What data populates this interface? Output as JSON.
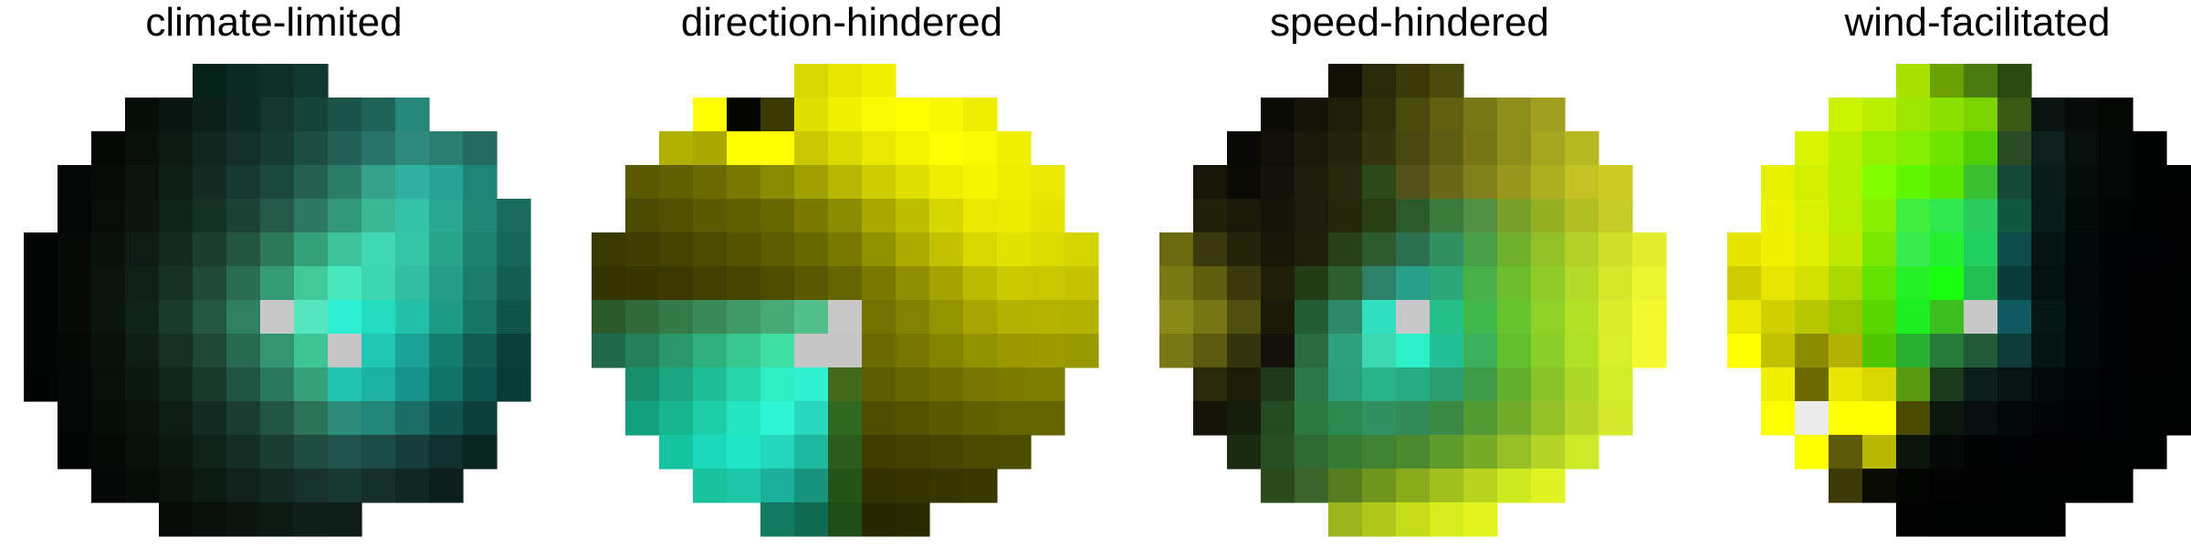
{
  "figure": {
    "background": "#ffffff",
    "marker_color": "#c8c8c8"
  },
  "chart_data": [
    {
      "type": "heatmap",
      "title": "climate-limited",
      "shape": "circular grid",
      "rows": 14,
      "cols": 15,
      "center_cell": [
        7,
        7
      ],
      "dominant_color": "#00e5cc",
      "cells": [
        [
          null,
          null,
          null,
          null,
          null,
          "#062219",
          "#0a2a22",
          "#0d3029",
          "#0f3830",
          null,
          null,
          null,
          null,
          null,
          null
        ],
        [
          null,
          null,
          null,
          "#060d08",
          "#091510",
          "#0c1f18",
          "#0f2a22",
          "#13352d",
          "#17443a",
          "#1b5349",
          "#1f6358",
          "#26887a",
          null,
          null,
          null
        ],
        [
          null,
          null,
          "#050906",
          "#081009",
          "#0c1a13",
          "#0f251d",
          "#133028",
          "#173c33",
          "#1d4c42",
          "#226054",
          "#277469",
          "#2d8a7d",
          "#2b7d70",
          "#236b60",
          null
        ],
        [
          null,
          "#040705",
          "#070c08",
          "#0a140e",
          "#0e1f18",
          "#122a22",
          "#17382e",
          "#1c473c",
          "#24604f",
          "#2b7d68",
          "#36a28a",
          "#2fb0a0",
          "#27a294",
          "#1f8478",
          null
        ],
        [
          null,
          "#040605",
          "#080d09",
          "#0c1610",
          "#10231b",
          "#153126",
          "#1b4235",
          "#235a48",
          "#2c7860",
          "#339878",
          "#3ab894",
          "#34c2a8",
          "#2aa893",
          "#218676",
          "#1a6a5d"
        ],
        [
          "#030504",
          "#060a07",
          "#0a110b",
          "#0e1c15",
          "#132a21",
          "#1a3d30",
          "#22563f",
          "#2c7a58",
          "#34a178",
          "#3cc39a",
          "#3fd8b2",
          "#34c4a6",
          "#28a48a",
          "#1f826f",
          "#17665a"
        ],
        [
          "#030504",
          "#060a07",
          "#0a130d",
          "#0f2018",
          "#163225",
          "#1f4a38",
          "#296d52",
          "#359b74",
          "#41c99a",
          "#46e8bc",
          "#3ed6b0",
          "#32bea0",
          "#269e87",
          "#1c7c6a",
          "#145e51"
        ],
        [
          "#030504",
          "#060a07",
          "#0a140e",
          "#10231a",
          "#193a2c",
          "#235643",
          "#2f7f62",
          "#3cb28a",
          "#55e6c0",
          "#2ef0d4",
          "#24dcc0",
          "#22c0a6",
          "#1c9a86",
          "#157666",
          "#0f5649"
        ],
        [
          "#030504",
          "#050906",
          "#09110b",
          "#0e1d15",
          "#152f23",
          "#1e4736",
          "#286a51",
          "#339672",
          "#3ec596",
          "#c6c6c6",
          "#20c8b4",
          "#1aa294",
          "#157c70",
          "#105c52",
          "#0b4038"
        ],
        [
          "#020403",
          "#040806",
          "#070f0a",
          "#0b1812",
          "#10261d",
          "#17392c",
          "#1f5442",
          "#2a785d",
          "#35a07a",
          "#22c3b0",
          "#1db1a2",
          "#17948a",
          "#11726a",
          "#0c544e",
          "#083a36"
        ],
        [
          null,
          "#030604",
          "#060c08",
          "#09130e",
          "#0d1e17",
          "#122b22",
          "#193e31",
          "#205543",
          "#2a7258",
          "#2b8c7a",
          "#22867a",
          "#1a6e66",
          "#125550",
          "#0c3e3a",
          null
        ],
        [
          null,
          "#030504",
          "#050a07",
          "#08100b",
          "#0b1812",
          "#0f221a",
          "#142e25",
          "#1a3c31",
          "#1f4a3e",
          "#20544a",
          "#1b4c44",
          "#153e38",
          "#0f302c",
          "#0a2420",
          null
        ],
        [
          null,
          null,
          "#040806",
          "#060d08",
          "#09130e",
          "#0c1a14",
          "#10221b",
          "#132a22",
          "#16322a",
          "#17382f",
          "#143029",
          "#102822",
          "#0c1f1a",
          null,
          null
        ],
        [
          null,
          null,
          null,
          null,
          "#070b08",
          "#09100c",
          "#0b1510",
          "#0d1a14",
          "#0e1e18",
          "#0d1c16",
          null,
          null,
          null,
          null,
          null
        ]
      ]
    },
    {
      "type": "heatmap",
      "title": "direction-hindered",
      "shape": "circular grid",
      "rows": 14,
      "cols": 15,
      "center_cell": [
        7,
        7
      ],
      "dominant_color": "#ffff00",
      "cells": [
        [
          null,
          null,
          null,
          null,
          null,
          null,
          "#d8d800",
          "#e6e600",
          "#f0f000",
          null,
          null,
          null,
          null,
          null,
          null
        ],
        [
          null,
          null,
          null,
          "#ffff00",
          "#050500",
          "#3a3a00",
          "#e0e000",
          "#f2f200",
          "#fafa00",
          "#ffff00",
          "#f8f800",
          "#eeee00",
          null,
          null,
          null
        ],
        [
          null,
          null,
          "#b0b000",
          "#a8a800",
          "#ffff00",
          "#ffff00",
          "#c8c800",
          "#dada00",
          "#e8e800",
          "#f4f400",
          "#ffff00",
          "#fafa00",
          "#f0f000",
          null,
          null
        ],
        [
          null,
          "#5a5a00",
          "#606000",
          "#6a6a00",
          "#7a7a00",
          "#8a8a00",
          "#a0a000",
          "#b8b800",
          "#cccc00",
          "#dede00",
          "#eeee00",
          "#f6f600",
          "#eeee00",
          "#e8e800",
          null
        ],
        [
          null,
          "#4a4a00",
          "#505000",
          "#5a5a00",
          "#606000",
          "#686800",
          "#7a7a00",
          "#8c8c00",
          "#a8a800",
          "#bebe00",
          "#d6d600",
          "#e8e800",
          "#ecec00",
          "#e4e400",
          null
        ],
        [
          "#3a3a00",
          "#3e3e00",
          "#444400",
          "#4c4c00",
          "#545400",
          "#5c5c00",
          "#686800",
          "#7a7a00",
          "#929200",
          "#aaaa00",
          "#c2c200",
          "#d8d800",
          "#e2e200",
          "#dcdc00",
          "#d4d400"
        ],
        [
          "#333300",
          "#363600",
          "#3a3a00",
          "#404000",
          "#464600",
          "#4e4e00",
          "#585800",
          "#666600",
          "#7a7a00",
          "#8e8e00",
          "#a4a400",
          "#baba00",
          "#caca00",
          "#c8c800",
          "#c4c400"
        ],
        [
          "#2a5a2a",
          "#2f6a3a",
          "#347a48",
          "#3a8a58",
          "#409a66",
          "#46aa76",
          "#52c08a",
          "#ff0000",
          "#727200",
          "#828200",
          "#949400",
          "#a6a600",
          "#b2b200",
          "#b4b400",
          "#b2b200"
        ],
        [
          "#20684a",
          "#258058",
          "#2a9868",
          "#30b07a",
          "#38c88e",
          "#40e0a4",
          "#c6c6c6",
          "#c6c6c6",
          "#6a6a00",
          "#767600",
          "#848400",
          "#929200",
          "#9a9a00",
          "#9c9c00",
          "#989800"
        ],
        [
          null,
          "#178e6c",
          "#1aa680",
          "#20be96",
          "#28d6ac",
          "#30eec4",
          "#30f0d0",
          "#426a1a",
          "#5e5e00",
          "#666600",
          "#6e6e00",
          "#767600",
          "#7c7c00",
          "#7e7e00",
          null
        ],
        [
          null,
          "#13a07c",
          "#16b690",
          "#1ccea8",
          "#24e6c0",
          "#2cf6d4",
          "#28d8bc",
          "#2f6a20",
          "#4e4e00",
          "#545400",
          "#5a5a00",
          "#606000",
          "#646400",
          "#666600",
          null
        ],
        [
          null,
          null,
          "#14c4a0",
          "#1ad8b8",
          "#22e6c8",
          "#24d6bc",
          "#1eb89e",
          "#2a5c1e",
          "#3e3e00",
          "#424200",
          "#464600",
          "#4a4a00",
          "#4c4c00",
          null,
          null
        ],
        [
          null,
          null,
          null,
          "#18c49e",
          "#1cc8a8",
          "#1ab09a",
          "#16947e",
          "#245418",
          "#323200",
          "#343400",
          "#363600",
          "#383800",
          null,
          null,
          null
        ],
        [
          null,
          null,
          null,
          null,
          null,
          "#127a60",
          "#106a52",
          "#1e4c16",
          "#282800",
          "#2a2a00",
          null,
          null,
          null,
          null,
          null
        ]
      ]
    },
    {
      "type": "heatmap",
      "title": "speed-hindered",
      "shape": "circular grid",
      "rows": 14,
      "cols": 15,
      "center_cell": [
        7,
        7
      ],
      "dominant_color": "#e6ff00",
      "cells": [
        [
          null,
          null,
          null,
          null,
          null,
          "#101005",
          "#2a2a08",
          "#3a3a08",
          "#4a4a0a",
          null,
          null,
          null,
          null,
          null,
          null
        ],
        [
          null,
          null,
          null,
          "#0a0a04",
          "#141408",
          "#1e1e08",
          "#303008",
          "#4a4a0c",
          "#606010",
          "#787816",
          "#8e8e1a",
          "#a0a01e",
          null,
          null,
          null
        ],
        [
          null,
          null,
          "#080804",
          "#101008",
          "#1a1a0a",
          "#24240c",
          "#34340e",
          "#484810",
          "#5e5e12",
          "#767616",
          "#8e8e1a",
          "#a6a61e",
          "#b8b822",
          null,
          null
        ],
        [
          null,
          "#161608",
          "#0a0a04",
          "#121208",
          "#1c1c0a",
          "#28280c",
          "#2c4a18",
          "#52521a",
          "#686818",
          "#80801a",
          "#98981c",
          "#aeae1e",
          "#c2c222",
          "#cccc24",
          null
        ],
        [
          null,
          "#202008",
          "#1a1a08",
          "#141408",
          "#1c1c0a",
          "#26260c",
          "#2a3e14",
          "#2c5a2a",
          "#3a7a3a",
          "#509040",
          "#78a028",
          "#96b024",
          "#b0c024",
          "#c8cc26",
          null
        ],
        [
          "#6a6a10",
          "#3a3a0c",
          "#242408",
          "#181808",
          "#1e1e0a",
          "#284018",
          "#2c5a30",
          "#2a7050",
          "#309060",
          "#4aa048",
          "#70b02a",
          "#92c026",
          "#b4d026",
          "#d0e028",
          "#e4ec2c"
        ],
        [
          "#7a7a14",
          "#5e5e10",
          "#3a3a0c",
          "#202008",
          "#243c16",
          "#2c5e30",
          "#2e8066",
          "#26a088",
          "#2aa878",
          "#48b048",
          "#6cbe2c",
          "#90cc28",
          "#b4da28",
          "#d4e82a",
          "#ecf42e"
        ],
        [
          "#8a8a18",
          "#767614",
          "#4e4e0e",
          "#1a1a08",
          "#245c32",
          "#2c8a6a",
          "#30e0c0",
          "#c6c6c6",
          "#26c08a",
          "#40b84c",
          "#68c42c",
          "#8ed228",
          "#b4e028",
          "#d8ee2a",
          "#f2f82e"
        ],
        [
          "#787814",
          "#5a5a10",
          "#34340c",
          "#121208",
          "#2a6c3e",
          "#2ea27c",
          "#3cd8b0",
          "#2cf0c8",
          "#24c098",
          "#3cb05a",
          "#62c02e",
          "#8ad028",
          "#b0e028",
          "#d8f02a",
          "#f4fa2e"
        ],
        [
          null,
          "#2a2a0a",
          "#1c1c08",
          "#1e3818",
          "#2c7848",
          "#2aa07a",
          "#2ab48c",
          "#28ac86",
          "#2a9e6e",
          "#3e9c48",
          "#62b02e",
          "#88c428",
          "#aed828",
          "#d2ec2a",
          null
        ],
        [
          null,
          "#141408",
          "#141e0a",
          "#244a24",
          "#2c7a40",
          "#2c8a50",
          "#309060",
          "#328a58",
          "#3a8a44",
          "#529a34",
          "#72ac2a",
          "#94c028",
          "#b6d628",
          "#d2ea2a",
          null
        ],
        [
          null,
          null,
          "#1a2a10",
          "#265024",
          "#2e6a32",
          "#367a34",
          "#408234",
          "#4c8a30",
          "#5e9a2c",
          "#78ac28",
          "#96c026",
          "#b4d426",
          "#ccea28",
          null,
          null
        ],
        [
          null,
          null,
          null,
          "#2a4a1c",
          "#3a6428",
          "#567c20",
          "#6e961c",
          "#88ac1a",
          "#a0c01c",
          "#b8d41e",
          "#ccea20",
          "#e0f424",
          null,
          null,
          null
        ],
        [
          null,
          null,
          null,
          null,
          null,
          "#9cb41c",
          "#b2c81a",
          "#c4dc1a",
          "#d6ec1c",
          "#e4f41e",
          null,
          null,
          null,
          null,
          null
        ]
      ]
    },
    {
      "type": "heatmap",
      "title": "wind-facilitated",
      "shape": "circular grid",
      "rows": 14,
      "cols": 15,
      "center_cell": [
        7,
        7
      ],
      "dominant_color": "#44ff00",
      "cells": [
        [
          null,
          null,
          null,
          null,
          null,
          "#a8e000",
          "#6aa000",
          "#4a7a10",
          "#2a4a14",
          null,
          null,
          null,
          null,
          null,
          null
        ],
        [
          null,
          null,
          null,
          "#c8f400",
          "#b8f000",
          "#9ee800",
          "#8ce000",
          "#7ad400",
          "#3a5a14",
          "#0a1410",
          "#060a08",
          "#040604",
          null,
          null,
          null
        ],
        [
          null,
          null,
          "#d8f400",
          "#b8f000",
          "#98f000",
          "#84f000",
          "#70e400",
          "#50d000",
          "#2a4a24",
          "#0e201c",
          "#070e0c",
          "#040706",
          "#020403",
          null,
          null
        ],
        [
          null,
          "#e6f000",
          "#d0f000",
          "#b4f000",
          "#80ff00",
          "#60f800",
          "#5ae800",
          "#3ac030",
          "#164838",
          "#0a1c18",
          "#050c0a",
          "#030605",
          "#020403",
          "#010302",
          null
        ],
        [
          null,
          "#eef400",
          "#d8f200",
          "#baee00",
          "#88f000",
          "#40f040",
          "#30e850",
          "#2acc60",
          "#125840",
          "#061c1a",
          "#030a08",
          "#020504",
          "#010302",
          "#010201",
          null
        ],
        [
          "#e4e400",
          "#f2f200",
          "#e0ee00",
          "#c0e800",
          "#7ae800",
          "#38ec50",
          "#24f030",
          "#20d060",
          "#0c4c4a",
          "#041412",
          "#02080a",
          "#010405",
          "#010203",
          "#010102",
          "#000101"
        ],
        [
          "#cccc00",
          "#e6e600",
          "#d4e000",
          "#acd800",
          "#60e400",
          "#26f028",
          "#18ff10",
          "#22c050",
          "#0a3a3c",
          "#031010",
          "#020608",
          "#010304",
          "#010102",
          "#000101",
          "#000101"
        ],
        [
          "#eaea00",
          "#d0d000",
          "#b8c800",
          "#98c400",
          "#58d800",
          "#1cf020",
          "#3cc020",
          "#c6c6c6",
          "#0e5a60",
          "#051814",
          "#02080a",
          "#010304",
          "#010102",
          "#000101",
          "#000101"
        ],
        [
          "#ffff00",
          "#c0c000",
          "#8c8c00",
          "#b2b200",
          "#50c800",
          "#2ab030",
          "#267a3a",
          "#225a38",
          "#0e3a38",
          "#041412",
          "#02080a",
          "#010304",
          "#010102",
          "#000101",
          "#000101"
        ],
        [
          null,
          "#f0f000",
          "#6a6a00",
          "#e6e600",
          "#d8d800",
          "#5a9a10",
          "#1a3a1a",
          "#0c1e1a",
          "#071412",
          "#030a0a",
          "#020506",
          "#010203",
          "#000101",
          "#000101",
          null
        ],
        [
          null,
          "#ffff00",
          "#ececec",
          "#ffff00",
          "#ffff00",
          "#4a4a00",
          "#0c180c",
          "#06100e",
          "#030808",
          "#020405",
          "#010203",
          "#000102",
          "#000101",
          "#000101",
          null
        ],
        [
          null,
          null,
          "#ffff00",
          "#5a5a08",
          "#b8b800",
          "#0a140a",
          "#040806",
          "#020404",
          "#010203",
          "#010102",
          "#000101",
          "#000101",
          "#000101",
          null,
          null
        ],
        [
          null,
          null,
          null,
          "#3a3a08",
          "#0a0a04",
          "#030503",
          "#020302",
          "#010201",
          "#000101",
          "#000101",
          "#000101",
          "#000101",
          null,
          null,
          null
        ],
        [
          null,
          null,
          null,
          null,
          null,
          "#010201",
          "#000101",
          "#000101",
          "#000101",
          "#000101",
          null,
          null,
          null,
          null,
          null
        ]
      ]
    }
  ]
}
